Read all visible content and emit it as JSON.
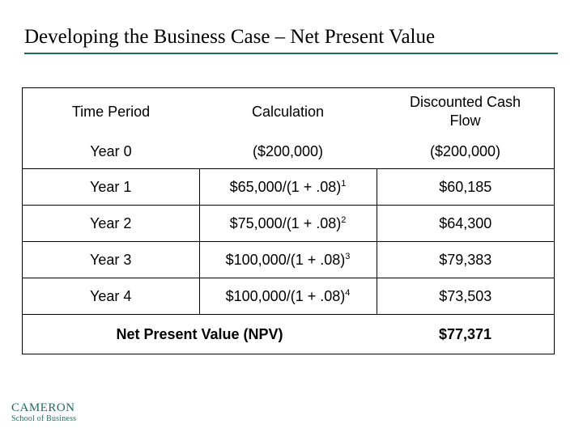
{
  "slide": {
    "title": "Developing the Business Case – Net Present Value"
  },
  "table": {
    "headers": [
      "Time Period",
      "Calculation",
      "Discounted Cash Flow"
    ],
    "rows": [
      {
        "period": "Year 0",
        "calc": "($200,000)",
        "exp": "",
        "dcf": "($200,000)"
      },
      {
        "period": "Year 1",
        "calc": "$65,000/(1 + .08)",
        "exp": "1",
        "dcf": "$60,185"
      },
      {
        "period": "Year 2",
        "calc": "$75,000/(1 + .08)",
        "exp": "2",
        "dcf": "$64,300"
      },
      {
        "period": "Year 3",
        "calc": "$100,000/(1 + .08)",
        "exp": "3",
        "dcf": "$79,383"
      },
      {
        "period": "Year 4",
        "calc": "$100,000/(1 + .08)",
        "exp": "4",
        "dcf": "$73,503"
      }
    ],
    "total_label": "Net Present Value (NPV)",
    "total_value": "$77,371"
  },
  "logo": {
    "main": "CAMERON",
    "sub": "School of Business"
  },
  "colors": {
    "accent": "#1f6b5e"
  }
}
